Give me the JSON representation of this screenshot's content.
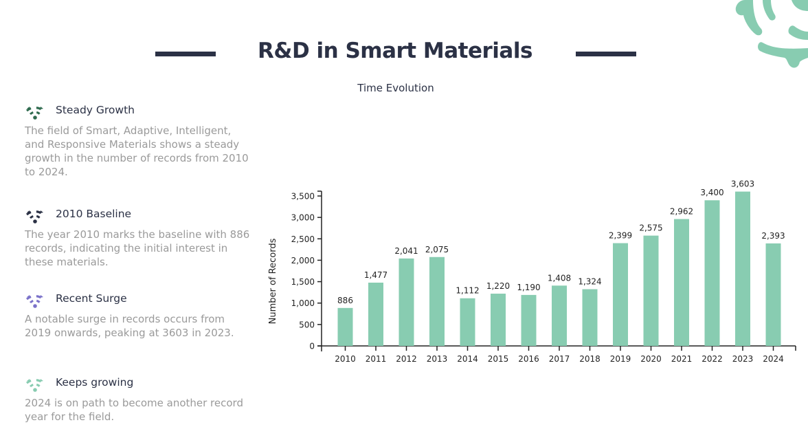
{
  "header": {
    "title": "R&D in Smart Materials",
    "subtitle": "Time Evolution"
  },
  "colors": {
    "bar": "#88ccb1",
    "title": "#2b3145",
    "body_text": "#9a9a9a",
    "decoration": "#88ccb1"
  },
  "insights": [
    {
      "icon": "wifi-signal-icon",
      "icon_color": "#2f6b4f",
      "title": "Steady Growth",
      "text": "The field of Smart, Adaptive, Intelligent, and Responsive Materials shows a steady growth in the number of records from 2010 to 2024."
    },
    {
      "icon": "wifi-signal-icon",
      "icon_color": "#2b3145",
      "title": "2010 Baseline",
      "text": "The year 2010 marks the baseline with 886 records, indicating the initial interest in these materials."
    },
    {
      "icon": "wifi-signal-icon",
      "icon_color": "#7b72c9",
      "title": "Recent Surge",
      "text": "A notable surge in records occurs from 2019 onwards, peaking at 3603 in 2023."
    },
    {
      "icon": "wifi-signal-icon",
      "icon_color": "#88ccb1",
      "title": "Keeps growing",
      "text": "2024 is on path to become another record year for the field."
    }
  ],
  "chart_data": {
    "type": "bar",
    "title": "Time Evolution",
    "xlabel": "",
    "ylabel": "Number of Records",
    "categories": [
      "2010",
      "2011",
      "2012",
      "2013",
      "2014",
      "2015",
      "2016",
      "2017",
      "2018",
      "2019",
      "2020",
      "2021",
      "2022",
      "2023",
      "2024"
    ],
    "values": [
      886,
      1477,
      2041,
      2075,
      1112,
      1220,
      1190,
      1408,
      1324,
      2399,
      2575,
      2962,
      3400,
      3603,
      2393
    ],
    "value_labels": [
      "886",
      "1,477",
      "2,041",
      "2,075",
      "1,112",
      "1,220",
      "1,190",
      "1,408",
      "1,324",
      "2,399",
      "2,575",
      "2,962",
      "3,400",
      "3,603",
      "2,393"
    ],
    "yticks": [
      0,
      500,
      1000,
      1500,
      2000,
      2500,
      3000,
      3500
    ],
    "ytick_labels": [
      "0",
      "500",
      "1,000",
      "1,500",
      "2,000",
      "2,500",
      "3,000",
      "3,500"
    ],
    "ylim": [
      0,
      3500
    ],
    "grid": false,
    "legend": "none"
  }
}
